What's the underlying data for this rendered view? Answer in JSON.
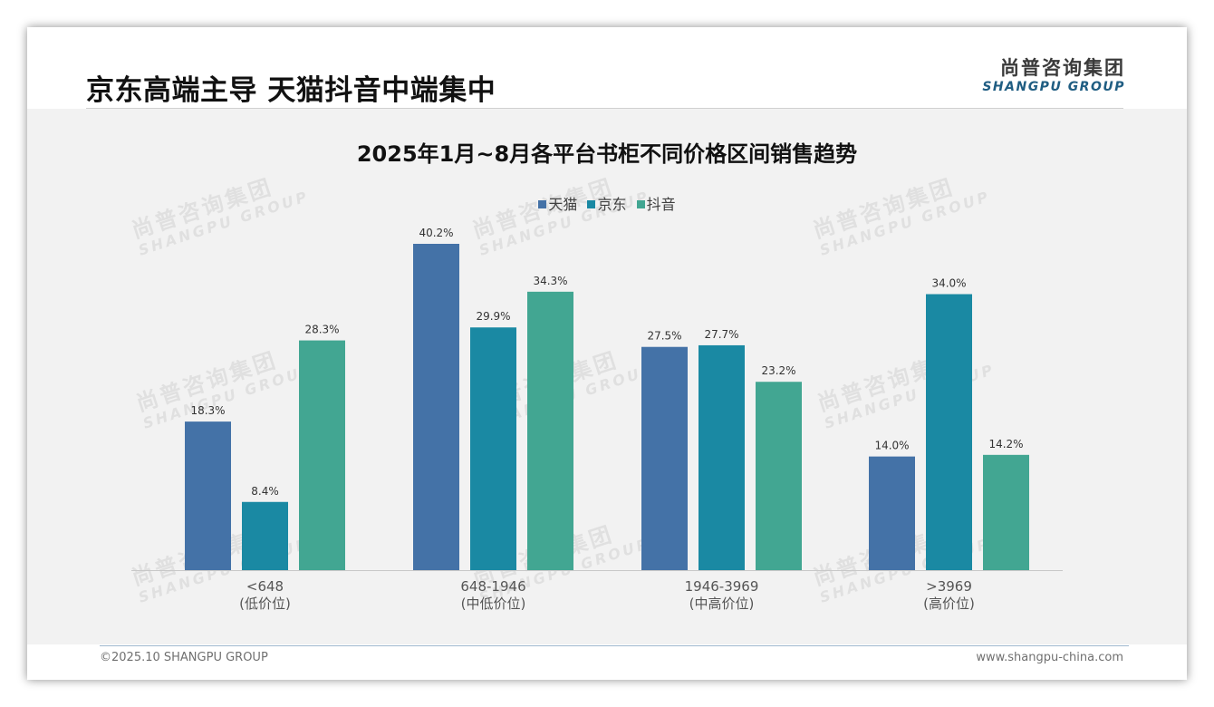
{
  "header": {
    "title": "京东高端主导 天猫抖音中端集中",
    "logo_cn": "尚普咨询集团",
    "logo_en": "SHANGPU GROUP"
  },
  "watermark": {
    "cn": "尚普咨询集团",
    "en": "SHANGPU GROUP"
  },
  "chart_data": {
    "type": "bar",
    "title": "2025年1月~8月各平台书柜不同价格区间销售趋势",
    "categories": [
      "<648",
      "648-1946",
      "1946-3969",
      ">3969"
    ],
    "category_sublabels": [
      "(低价位)",
      "(中低价位)",
      "(中高价位)",
      "(高价位)"
    ],
    "series": [
      {
        "name": "天猫",
        "color": "#4472a7",
        "values": [
          18.3,
          40.2,
          27.5,
          14.0
        ],
        "labels": [
          "18.3%",
          "40.2%",
          "27.5%",
          "14.0%"
        ]
      },
      {
        "name": "京东",
        "color": "#1a89a3",
        "values": [
          8.4,
          29.9,
          27.7,
          34.0
        ],
        "labels": [
          "8.4%",
          "29.9%",
          "27.7%",
          "34.0%"
        ]
      },
      {
        "name": "抖音",
        "color": "#42a692",
        "values": [
          28.3,
          34.3,
          23.2,
          14.2
        ],
        "labels": [
          "28.3%",
          "34.3%",
          "23.2%",
          "14.2%"
        ]
      }
    ],
    "unit": "%",
    "ylim": [
      0,
      45
    ],
    "xlabel": "",
    "ylabel": "",
    "grid": false,
    "legend": "top-center"
  },
  "footer": {
    "copyright": "©2025.10 SHANGPU GROUP",
    "website": "www.shangpu-china.com"
  }
}
